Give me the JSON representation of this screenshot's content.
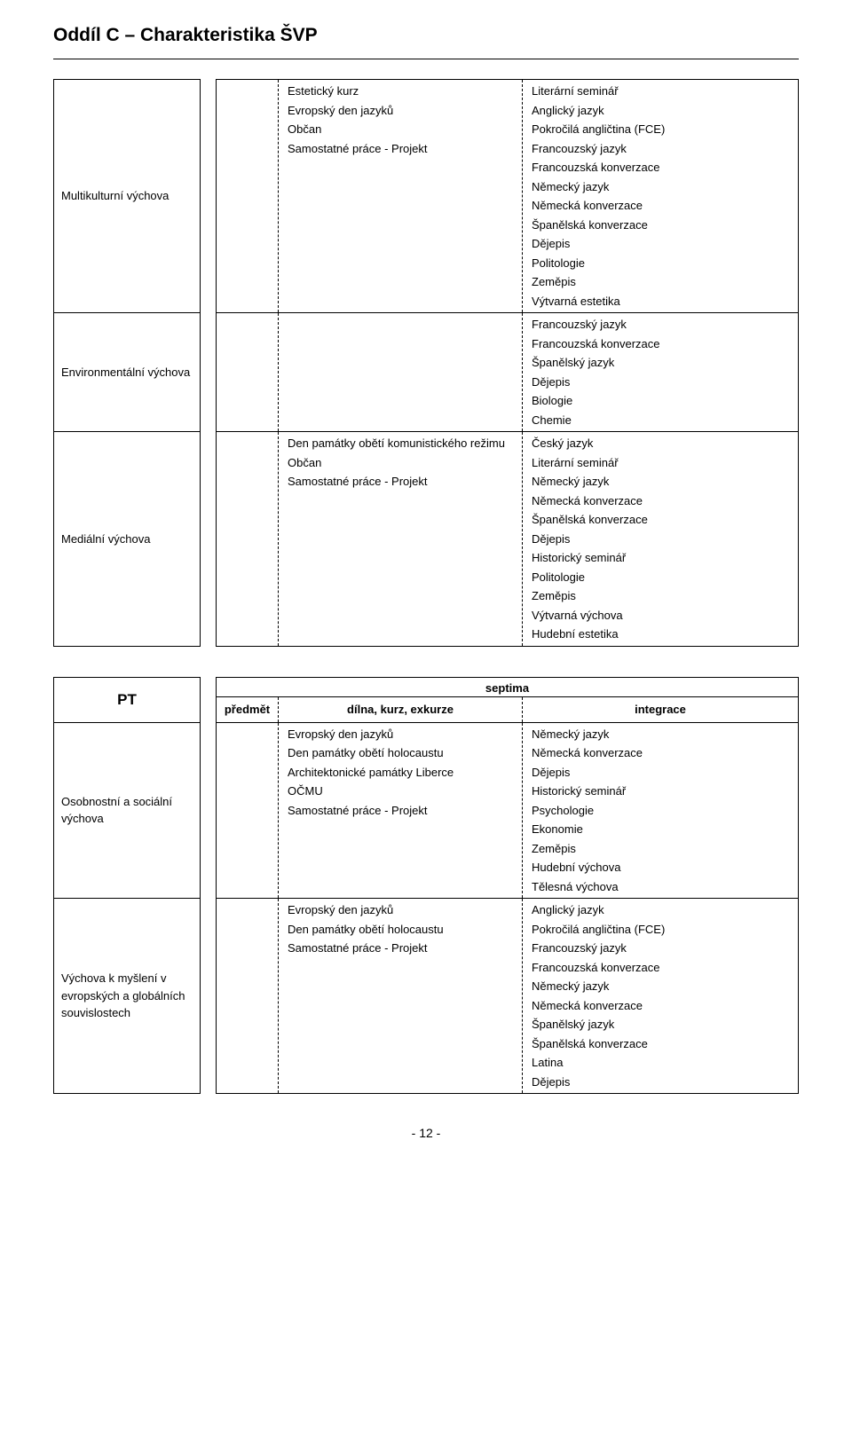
{
  "heading": "Oddíl C – Charakteristika ŠVP",
  "footer": "- 12 -",
  "table1": {
    "rows": [
      {
        "label": "Multikulturní výchova",
        "dilna": [
          "Estetický kurz",
          "Evropský den jazyků",
          "Občan",
          "Samostatné práce - Projekt"
        ],
        "integ": [
          "Literární seminář",
          "Anglický jazyk",
          "Pokročilá angličtina (FCE)",
          "Francouzský jazyk",
          "Francouzská konverzace",
          "Německý jazyk",
          "Německá konverzace",
          "Španělská konverzace",
          "Dějepis",
          "Politologie",
          "Zeměpis",
          "Výtvarná estetika"
        ]
      },
      {
        "label": "Environmentální výchova",
        "dilna": [],
        "integ": [
          "Francouzský jazyk",
          "Francouzská konverzace",
          "Španělský jazyk",
          "Dějepis",
          "Biologie",
          "Chemie"
        ]
      },
      {
        "label": "Mediální výchova",
        "dilna": [
          "Den památky obětí komunistického režimu",
          "Občan",
          "Samostatné práce - Projekt"
        ],
        "integ": [
          "Český jazyk",
          "Literární seminář",
          "Německý jazyk",
          "Německá konverzace",
          "Španělská konverzace",
          "Dějepis",
          "Historický seminář",
          "Politologie",
          "Zeměpis",
          "Výtvarná výchova",
          "Hudební estetika"
        ]
      }
    ]
  },
  "table2": {
    "pt_label": "PT",
    "top_header": "septima",
    "headers": {
      "predmet": "předmět",
      "dilna": "dílna, kurz, exkurze",
      "integ": "integrace"
    },
    "rows": [
      {
        "label": "Osobnostní a sociální výchova",
        "dilna": [
          "Evropský den jazyků",
          "Den památky obětí holocaustu",
          "Architektonické památky Liberce",
          "OČMU",
          "Samostatné práce - Projekt"
        ],
        "integ": [
          "Německý jazyk",
          "Německá konverzace",
          "Dějepis",
          "Historický seminář",
          "Psychologie",
          "Ekonomie",
          "Zeměpis",
          "Hudební výchova",
          "Tělesná výchova"
        ]
      },
      {
        "label": "Výchova k myšlení v evropských a globálních souvislostech",
        "dilna": [
          "Evropský den jazyků",
          "Den památky obětí holocaustu",
          "Samostatné práce - Projekt"
        ],
        "integ": [
          "Anglický jazyk",
          "Pokročilá angličtina (FCE)",
          "Francouzský jazyk",
          "Francouzská konverzace",
          "Německý jazyk",
          "Německá konverzace",
          "Španělský jazyk",
          "Španělská konverzace",
          "Latina",
          "Dějepis"
        ]
      }
    ]
  }
}
